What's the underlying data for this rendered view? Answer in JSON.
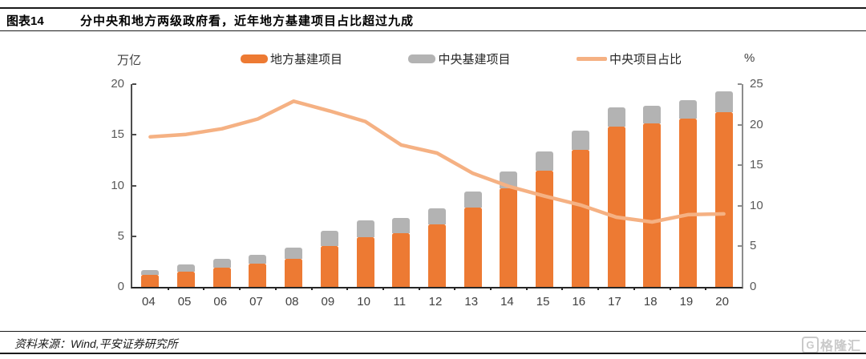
{
  "header": {
    "tag": "图表14",
    "title": "分中央和地方两级政府看，近年地方基建项目占比超过九成"
  },
  "footer": {
    "source": "资料来源：Wind,平安证券研究所"
  },
  "watermark": {
    "icon": "G",
    "text": "格隆汇"
  },
  "colors": {
    "local_bar": "#ED7A33",
    "central_bar": "#B3B3B3",
    "share_line": "#F5B183",
    "axis_dark": "#262626",
    "axis_text": "#595959"
  },
  "chart_data": {
    "type": "bar",
    "subtype": "stacked bars with line overlay",
    "categories": [
      "04",
      "05",
      "06",
      "07",
      "08",
      "09",
      "10",
      "11",
      "12",
      "13",
      "14",
      "15",
      "16",
      "17",
      "18",
      "19",
      "20"
    ],
    "series": [
      {
        "name": "地方基建项目",
        "type": "bar",
        "stack": true,
        "axis": "left",
        "color_key": "local_bar",
        "values": [
          1.2,
          1.5,
          1.9,
          2.3,
          2.8,
          4.0,
          4.9,
          5.3,
          6.2,
          7.8,
          9.7,
          11.5,
          13.5,
          15.8,
          16.1,
          16.6,
          17.2
        ]
      },
      {
        "name": "中央基建项目",
        "type": "bar",
        "stack": true,
        "axis": "left",
        "color_key": "central_bar",
        "values": [
          0.5,
          0.7,
          0.85,
          0.85,
          1.05,
          1.5,
          1.65,
          1.5,
          1.55,
          1.6,
          1.7,
          1.85,
          1.9,
          1.9,
          1.8,
          1.8,
          2.1
        ]
      },
      {
        "name": "中央项目占比",
        "type": "line",
        "axis": "right",
        "color_key": "share_line",
        "values": [
          18.5,
          18.8,
          19.5,
          20.7,
          22.9,
          21.7,
          20.4,
          17.5,
          16.5,
          14.0,
          12.4,
          11.2,
          10.1,
          8.6,
          8.0,
          8.9,
          9.0
        ]
      }
    ],
    "left_axis": {
      "label": "万亿",
      "min": 0,
      "max": 20,
      "ticks": [
        0,
        5,
        10,
        15,
        20
      ]
    },
    "right_axis": {
      "label": "%",
      "min": 0,
      "max": 25,
      "ticks": [
        0,
        5,
        10,
        15,
        20,
        25
      ]
    },
    "legend": {
      "position": "top",
      "entries": [
        "地方基建项目",
        "中央基建项目",
        "中央项目占比"
      ]
    },
    "grid": false
  }
}
